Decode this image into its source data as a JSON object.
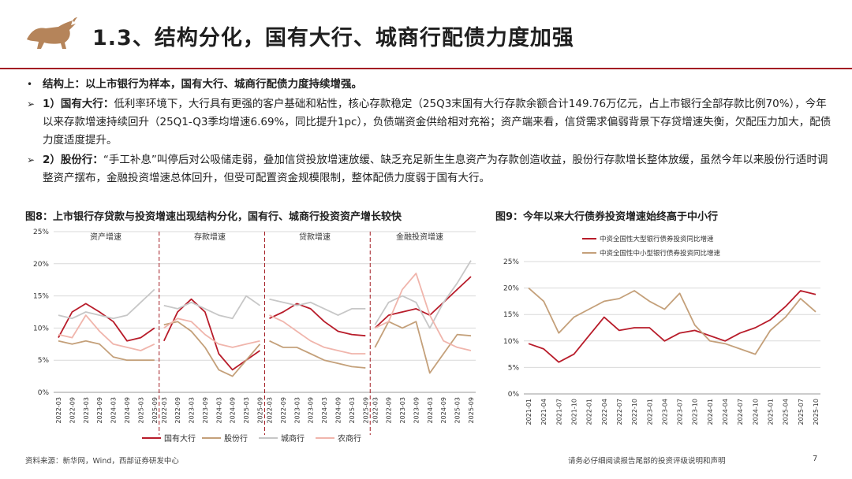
{
  "header": {
    "title": "1.3、结构分化，国有大行、城商行配债力度加强"
  },
  "bullets": [
    {
      "marker": "•",
      "lead": "结构上：以上市银行为样本，国有大行、城商行配债力度持续增强。",
      "text": ""
    },
    {
      "marker": "➢",
      "lead": "1）国有大行：",
      "text": "低利率环境下，大行具有更强的客户基础和粘性，核心存款稳定（25Q3末国有大行存款余额合计149.76万亿元，占上市银行全部存款比例70%），今年以来存款增速持续回升（25Q1-Q3季均增速6.69%，同比提升1pc），负债端资金供给相对充裕；资产端来看，信贷需求偏弱背景下存贷增速失衡，欠配压力加大，配债力度适度提升。"
    },
    {
      "marker": "➢",
      "lead": "2）股份行：",
      "text": "“手工补息”叫停后对公吸储走弱，叠加信贷投放增速放缓、缺乏充足新生生息资产为存款创造收益，股份行存款增长整体放缓，虽然今年以来股份行适时调整资产摆布，金融投资增速总体回升，但受可配置资金规模限制，整体配债力度弱于国有大行。"
    }
  ],
  "fig8": {
    "title": "图8：上市银行存贷款与投资增速出现结构分化，国有行、城商行投资资产增长较快",
    "panels": [
      "资产增速",
      "存款增速",
      "贷款增速",
      "金融投资增速"
    ],
    "y_ticks": [
      "25%",
      "20%",
      "15%",
      "10%",
      "5%",
      "0%"
    ],
    "x_ticks": [
      "2022-03",
      "2022-09",
      "2023-03",
      "2023-09",
      "2024-03",
      "2024-09",
      "2025-03",
      "2025-09"
    ],
    "legend": [
      "国有大行",
      "股份行",
      "城商行",
      "农商行"
    ]
  },
  "fig9": {
    "title": "图9：今年以来大行债券投资增速始终高于中小行",
    "legend": [
      "中资全国性大型银行债券投资同比增速",
      "中资全国性中小型银行债券投资同比增速"
    ],
    "y_ticks": [
      "25%",
      "20%",
      "15%",
      "10%",
      "5%",
      "0%"
    ],
    "x_ticks": [
      "2021-01",
      "2021-04",
      "2021-07",
      "2021-10",
      "2022-01",
      "2022-04",
      "2022-07",
      "2022-10",
      "2023-01",
      "2023-04",
      "2023-07",
      "2023-10",
      "2024-01",
      "2024-04",
      "2024-07",
      "2024-10",
      "2025-01",
      "2025-04",
      "2025-07",
      "2025-10"
    ]
  },
  "chart_data": [
    {
      "type": "line",
      "title": "图8：上市银行存贷款与投资增速出现结构分化，国有行、城商行投资资产增长较快",
      "ylim": [
        0,
        25
      ],
      "unit": "%",
      "x": [
        "2022-03",
        "2022-09",
        "2023-03",
        "2023-09",
        "2024-03",
        "2024-09",
        "2025-03",
        "2025-09"
      ],
      "panels": [
        {
          "name": "资产增速",
          "series": [
            {
              "name": "国有大行",
              "values": [
                8.5,
                12.5,
                13.8,
                12.5,
                11.0,
                8.0,
                8.5,
                10.0
              ]
            },
            {
              "name": "股份行",
              "values": [
                8.0,
                7.5,
                8.0,
                7.5,
                5.5,
                5.0,
                5.0,
                5.0
              ]
            },
            {
              "name": "城商行",
              "values": [
                12.0,
                11.5,
                12.5,
                12.0,
                11.5,
                12.0,
                14.0,
                16.0
              ]
            },
            {
              "name": "农商行",
              "values": [
                9.0,
                8.5,
                12.0,
                9.5,
                7.5,
                7.0,
                6.5,
                7.5
              ]
            }
          ]
        },
        {
          "name": "存款增速",
          "series": [
            {
              "name": "国有大行",
              "values": [
                8.0,
                12.5,
                14.5,
                12.5,
                6.0,
                3.5,
                5.0,
                6.5
              ]
            },
            {
              "name": "股份行",
              "values": [
                10.5,
                11.0,
                9.5,
                7.0,
                3.5,
                2.5,
                5.0,
                7.5
              ]
            },
            {
              "name": "城商行",
              "values": [
                13.5,
                13.0,
                14.0,
                13.0,
                12.0,
                11.5,
                15.0,
                13.5
              ]
            },
            {
              "name": "农商行",
              "values": [
                10.0,
                11.5,
                11.0,
                9.0,
                7.5,
                7.0,
                7.5,
                8.0
              ]
            }
          ]
        },
        {
          "name": "贷款增速",
          "series": [
            {
              "name": "国有大行",
              "values": [
                11.5,
                12.5,
                13.8,
                13.0,
                11.0,
                9.5,
                9.0,
                8.8
              ]
            },
            {
              "name": "股份行",
              "values": [
                8.0,
                7.0,
                7.0,
                6.0,
                5.0,
                4.5,
                4.0,
                3.8
              ]
            },
            {
              "name": "城商行",
              "values": [
                14.5,
                14.0,
                13.5,
                14.0,
                13.0,
                12.0,
                13.0,
                13.0
              ]
            },
            {
              "name": "农商行",
              "values": [
                12.0,
                11.0,
                9.5,
                8.0,
                7.0,
                6.5,
                6.0,
                6.0
              ]
            }
          ]
        },
        {
          "name": "金融投资增速",
          "series": [
            {
              "name": "国有大行",
              "values": [
                10.0,
                12.0,
                12.5,
                13.0,
                12.0,
                14.0,
                16.0,
                18.0
              ]
            },
            {
              "name": "股份行",
              "values": [
                7.0,
                11.0,
                10.0,
                11.0,
                3.0,
                6.0,
                9.0,
                8.8
              ]
            },
            {
              "name": "城商行",
              "values": [
                10.5,
                14.0,
                15.0,
                14.0,
                10.0,
                14.0,
                17.0,
                20.5
              ]
            },
            {
              "name": "农商行",
              "values": [
                10.0,
                11.0,
                16.0,
                18.5,
                12.0,
                8.0,
                7.0,
                6.5
              ]
            }
          ]
        }
      ],
      "legend": "bottom"
    },
    {
      "type": "line",
      "title": "图9：今年以来大行债券投资增速始终高于中小行",
      "ylim": [
        0,
        25
      ],
      "unit": "%",
      "x": [
        "2021-01",
        "2021-04",
        "2021-07",
        "2021-10",
        "2022-01",
        "2022-04",
        "2022-07",
        "2022-10",
        "2023-01",
        "2023-04",
        "2023-07",
        "2023-10",
        "2024-01",
        "2024-04",
        "2024-07",
        "2024-10",
        "2025-01",
        "2025-04",
        "2025-07",
        "2025-10"
      ],
      "series": [
        {
          "name": "中资全国性大型银行债券投资同比增速",
          "values": [
            9.5,
            8.5,
            6.0,
            7.5,
            11.0,
            14.5,
            12.0,
            12.5,
            12.5,
            10.0,
            11.5,
            12.0,
            11.0,
            10.0,
            11.5,
            12.5,
            14.0,
            16.5,
            19.5,
            18.8
          ]
        },
        {
          "name": "中资全国性中小型银行债券投资同比增速",
          "values": [
            20.0,
            17.5,
            11.5,
            14.5,
            16.0,
            17.5,
            18.0,
            19.5,
            17.5,
            16.0,
            19.0,
            13.0,
            10.0,
            9.5,
            8.5,
            7.5,
            12.0,
            14.5,
            18.0,
            15.5
          ]
        }
      ],
      "legend": "top-left"
    }
  ],
  "colors": {
    "accent": "#a31d23",
    "bank_state": "#b81c2a",
    "bank_joint": "#c4a07a",
    "bank_city": "#c7c7c7",
    "bank_rural": "#f0b5ac",
    "grid": "#d9d9d9"
  },
  "footer": {
    "source": "资料来源：新华网，Wind，西部证券研发中心",
    "disclaimer": "请务必仔细阅读报告尾部的投资评级说明和声明",
    "page": "7"
  }
}
